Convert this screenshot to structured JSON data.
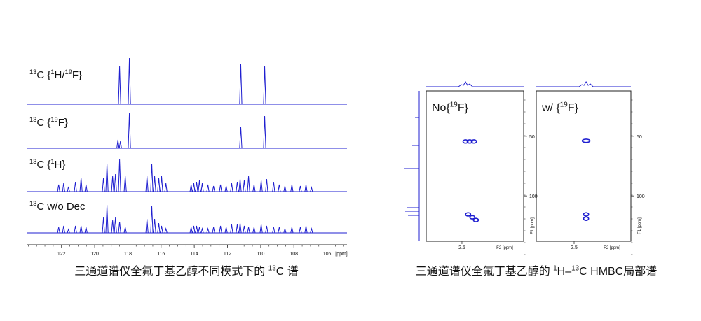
{
  "left_figure": {
    "xlim": [
      124.1,
      104.8
    ],
    "xticks": [
      122,
      120,
      118,
      116,
      114,
      112,
      110,
      108,
      106
    ],
    "x_unit": "[ppm]",
    "spectra": [
      {
        "label": [
          {
            "sup": "13"
          },
          "C {",
          {
            "sup": "1"
          },
          "H/",
          {
            "sup": "19"
          },
          "F}"
        ],
        "ppm": [
          118.5,
          117.91,
          111.2,
          109.76
        ],
        "intensity": [
          54,
          66,
          58,
          54
        ]
      },
      {
        "label": [
          {
            "sup": "13"
          },
          "C {",
          {
            "sup": "19"
          },
          "F}"
        ],
        "ppm": [
          118.6,
          118.45,
          117.91,
          111.2,
          109.76
        ],
        "intensity": [
          12,
          10,
          50,
          31,
          46
        ]
      },
      {
        "label": [
          {
            "sup": "13"
          },
          "C {",
          {
            "sup": "1"
          },
          "H}"
        ],
        "ppm": [
          122.17,
          121.87,
          121.58,
          121.16,
          120.82,
          120.52,
          119.47,
          119.26,
          118.92,
          118.75,
          118.5,
          118.16,
          116.85,
          116.56,
          116.39,
          116.14,
          115.97,
          115.71,
          114.19,
          114.03,
          113.86,
          113.69,
          113.52,
          113.18,
          112.84,
          112.42,
          112.08,
          111.75,
          111.41,
          111.24,
          110.99,
          110.73,
          110.4,
          109.97,
          109.64,
          109.22,
          108.88,
          108.54,
          108.12,
          107.61,
          107.27,
          106.94
        ],
        "intensity": [
          10,
          12,
          7,
          14,
          20,
          10,
          20,
          40,
          22,
          25,
          46,
          22,
          22,
          40,
          22,
          20,
          22,
          12,
          10,
          12,
          14,
          16,
          12,
          10,
          8,
          10,
          8,
          12,
          14,
          18,
          16,
          22,
          10,
          16,
          18,
          14,
          10,
          8,
          10,
          8,
          10,
          6
        ]
      },
      {
        "label": [
          {
            "sup": "13"
          },
          "C w/o Dec"
        ],
        "ppm": [
          122.17,
          121.87,
          121.58,
          121.16,
          120.82,
          120.52,
          119.47,
          119.26,
          118.92,
          118.75,
          118.5,
          118.16,
          116.85,
          116.56,
          116.39,
          116.14,
          115.97,
          115.71,
          114.19,
          114.03,
          113.86,
          113.69,
          113.52,
          113.18,
          112.84,
          112.42,
          112.08,
          111.75,
          111.41,
          111.24,
          110.99,
          110.73,
          110.4,
          109.97,
          109.64,
          109.22,
          108.88,
          108.54,
          108.12,
          107.61,
          107.27,
          106.94
        ],
        "intensity": [
          8,
          10,
          5,
          10,
          10,
          8,
          22,
          40,
          18,
          22,
          16,
          8,
          20,
          38,
          20,
          14,
          10,
          6,
          8,
          10,
          10,
          8,
          6,
          6,
          8,
          10,
          8,
          12,
          12,
          14,
          10,
          8,
          8,
          12,
          10,
          8,
          8,
          6,
          8,
          8,
          10,
          6
        ]
      }
    ],
    "caption": [
      "三通道谱仪全氟丁基乙醇不同模式下的 ",
      {
        "sup": "13"
      },
      "C 谱"
    ]
  },
  "right_figure": {
    "panels": [
      {
        "label": [
          "No{",
          {
            "sup": "19"
          },
          "F}"
        ],
        "xlim": [
          3.6,
          0.6
        ],
        "ylim": [
          12,
          138
        ],
        "xticks": [
          2.5
        ],
        "yticks": [
          50,
          100
        ],
        "x_label": "F2 [ppm]",
        "y_label": "F1 [ppm]",
        "peaks": {
          "f2": [
            2.39,
            2.26,
            2.13,
            2.31,
            2.18,
            2.07
          ],
          "f1": [
            54.4,
            54.4,
            54.4,
            115.5,
            117.9,
            120.2
          ]
        }
      },
      {
        "label": [
          "w/ {",
          {
            "sup": "19"
          },
          "F}"
        ],
        "xlim": [
          3.7,
          0.7
        ],
        "ylim": [
          12,
          138
        ],
        "xticks": [
          2.5
        ],
        "yticks": [
          50,
          100
        ],
        "x_label": "F2 [ppm]",
        "y_label": "F1 [ppm]",
        "peaks": {
          "f2": [
            2.12,
            2.12,
            2.12
          ],
          "f1": [
            53.8,
            115.5,
            119.1
          ]
        }
      }
    ],
    "caption": [
      "三通道谱仪全氟丁基乙醇的 ",
      {
        "sup": "1"
      },
      "H–",
      {
        "sup": "13"
      },
      "C HMBC局部谱"
    ]
  }
}
